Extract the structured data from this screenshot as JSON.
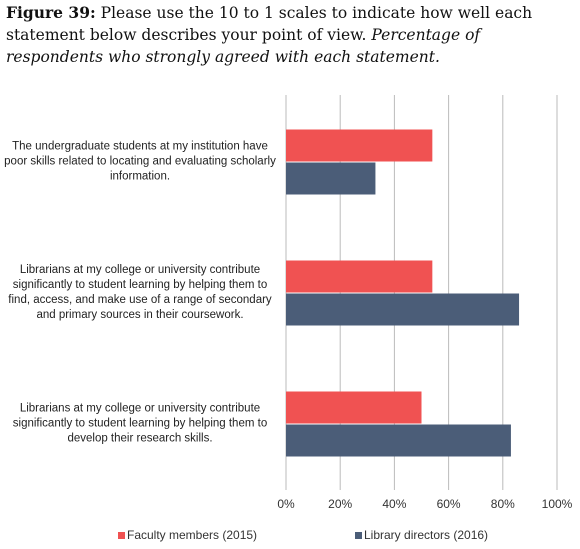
{
  "chart_data": {
    "type": "bar",
    "orientation": "horizontal",
    "title_label": "Figure 39:",
    "title": "Please use the 10 to 1 scales to indicate how well each statement below describes your point of view.",
    "subtitle": "Percentage of respondents who strongly agreed with each statement.",
    "categories": [
      "The undergraduate students at my institution have poor skills related to locating and evaluating scholarly information.",
      "Librarians at my college or university contribute significantly to student learning by helping them to find, access, and make use of a range of secondary and primary sources in their coursework.",
      "Librarians at my college or university contribute significantly to student learning by helping them to develop their research skills."
    ],
    "series": [
      {
        "name": "Faculty members (2015)",
        "color": "#f05252",
        "values": [
          54,
          54,
          50
        ]
      },
      {
        "name": "Library directors (2016)",
        "color": "#4b5d78",
        "values": [
          33,
          86,
          83
        ]
      }
    ],
    "xlim": [
      0,
      100
    ],
    "xticks": [
      {
        "value": 0,
        "label": "0%"
      },
      {
        "value": 20,
        "label": "20%"
      },
      {
        "value": 40,
        "label": "40%"
      },
      {
        "value": 60,
        "label": "60%"
      },
      {
        "value": 80,
        "label": "80%"
      },
      {
        "value": 100,
        "label": "100%"
      }
    ],
    "grid": true
  }
}
